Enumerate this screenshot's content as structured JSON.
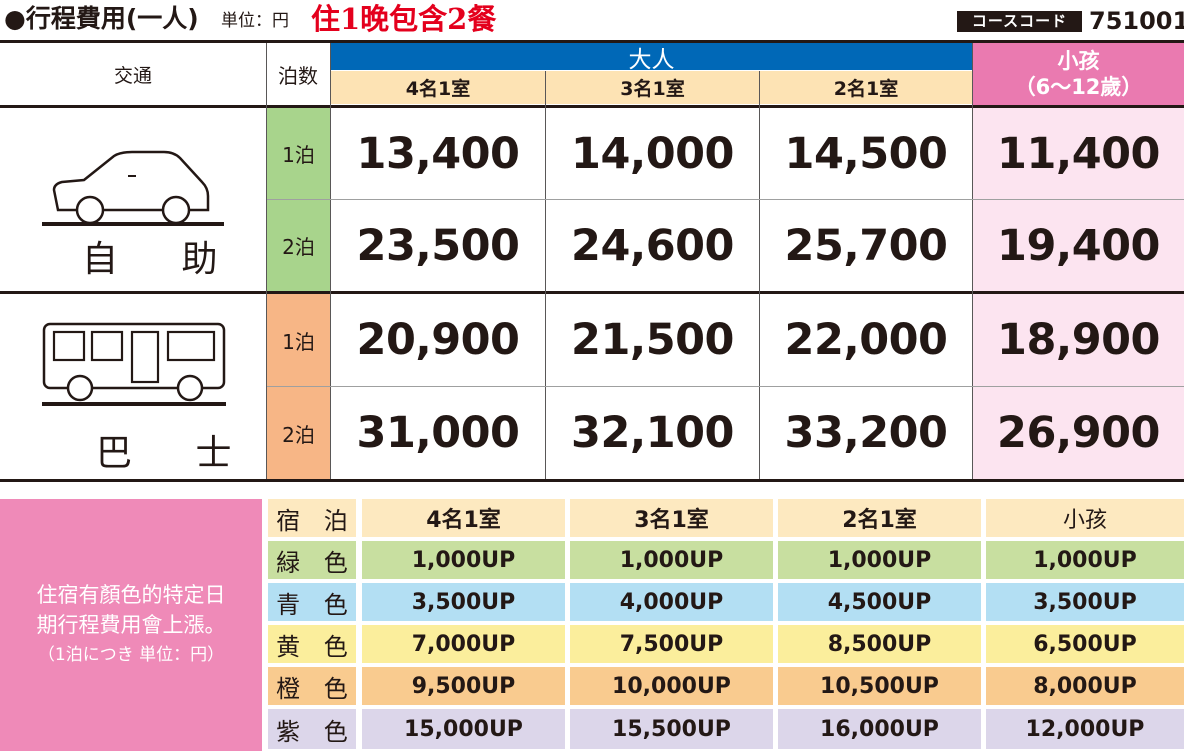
{
  "header": {
    "title": "●行程費用(一人)",
    "unit": "単位：円",
    "promo": "住1晚包含2餐",
    "course_code_label": "コースコード",
    "course_code": "751001"
  },
  "table": {
    "col_transport": "交通",
    "col_nights": "泊数",
    "adult_header": "大人",
    "child_header_line1": "小孩",
    "child_header_line2": "（6～12歲）",
    "room_types": [
      "4名1室",
      "3名1室",
      "2名1室"
    ],
    "groups": [
      {
        "mode": "自 助",
        "icon": "car-icon",
        "rows": [
          {
            "nights": "1泊",
            "prices": [
              "13,400",
              "14,000",
              "14,500"
            ],
            "child": "11,400"
          },
          {
            "nights": "2泊",
            "prices": [
              "23,500",
              "24,600",
              "25,700"
            ],
            "child": "19,400"
          }
        ]
      },
      {
        "mode": "巴 士",
        "icon": "bus-icon",
        "rows": [
          {
            "nights": "1泊",
            "prices": [
              "20,900",
              "21,500",
              "22,000"
            ],
            "child": "18,900"
          },
          {
            "nights": "2泊",
            "prices": [
              "31,000",
              "32,100",
              "33,200"
            ],
            "child": "26,900"
          }
        ]
      }
    ]
  },
  "surcharge": {
    "note_line1": "住宿有顏色的特定日",
    "note_line2": "期行程費用會上漲。",
    "note_line3": "（1泊につき 単位：円）",
    "headers": [
      "宿 泊",
      "4名1室",
      "3名1室",
      "2名1室",
      "小孩"
    ],
    "rows": [
      {
        "label": "緑 色",
        "color": "#c8dfa0",
        "values": [
          "1,000UP",
          "1,000UP",
          "1,000UP",
          "1,000UP"
        ]
      },
      {
        "label": "青 色",
        "color": "#b3dff3",
        "values": [
          "3,500UP",
          "4,000UP",
          "4,500UP",
          "3,500UP"
        ]
      },
      {
        "label": "黄 色",
        "color": "#fbee9c",
        "values": [
          "7,000UP",
          "7,500UP",
          "8,500UP",
          "6,500UP"
        ]
      },
      {
        "label": "橙 色",
        "color": "#f9cb8f",
        "values": [
          "9,500UP",
          "10,000UP",
          "10,500UP",
          "8,000UP"
        ]
      },
      {
        "label": "紫 色",
        "color": "#dcd6ea",
        "values": [
          "15,000UP",
          "15,500UP",
          "16,000UP",
          "12,000UP"
        ]
      }
    ]
  },
  "colors": {
    "adult_header_bg": "#0068b7",
    "room_header_bg": "#fde3b4",
    "child_header_bg": "#ea7ab0",
    "child_cell_bg": "#fce4f0",
    "night_green": "#a8d48c",
    "night_orange": "#f7b686",
    "note_pink": "#ef8ab8",
    "surcharge_header_bg": "#fde9c0",
    "promo_red": "#e4001d"
  }
}
